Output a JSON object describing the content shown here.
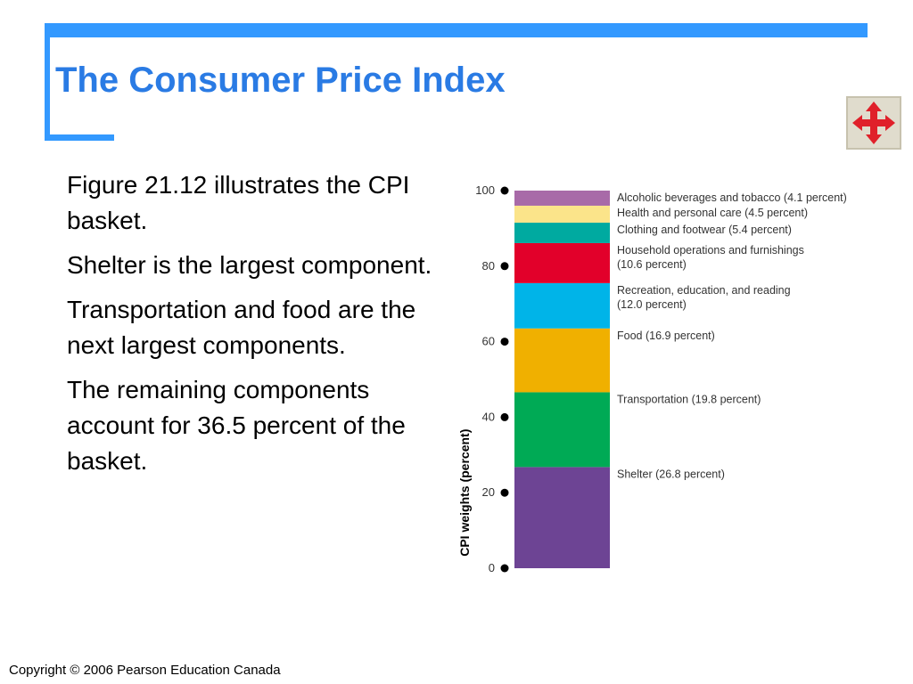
{
  "slide": {
    "title": "The Consumer Price Index",
    "bullets": [
      "Figure 21.12 illustrates the CPI basket.",
      "Shelter is the largest component.",
      "Transportation and food are the next largest components.",
      "The remaining components account for 36.5 percent of the basket."
    ],
    "footer": "Copyright © 2006 Pearson Education Canada",
    "nav_icon": "four-way-arrows-icon"
  },
  "chart_data": {
    "type": "stacked-bar",
    "ylabel": "CPI weights (percent)",
    "ylim": [
      0,
      100
    ],
    "yticks": [
      0,
      20,
      40,
      60,
      80,
      100
    ],
    "segments": [
      {
        "label": [
          "Shelter (26.8 percent)"
        ],
        "value": 26.8,
        "color": "#6d4494"
      },
      {
        "label": [
          "Transportation (19.8 percent)"
        ],
        "value": 19.8,
        "color": "#00aa55"
      },
      {
        "label": [
          "Food (16.9 percent)"
        ],
        "value": 16.9,
        "color": "#f0b000"
      },
      {
        "label": [
          "Recreation, education, and reading",
          "(12.0 percent)"
        ],
        "value": 12.0,
        "color": "#00b4e8"
      },
      {
        "label": [
          "Household operations and furnishings",
          "(10.6 percent)"
        ],
        "value": 10.6,
        "color": "#e2002a"
      },
      {
        "label": [
          "Clothing and footwear (5.4 percent)"
        ],
        "value": 5.4,
        "color": "#00aaa0"
      },
      {
        "label": [
          "Health and personal care (4.5 percent)"
        ],
        "value": 4.5,
        "color": "#fbe48a"
      },
      {
        "label": [
          "Alcoholic beverages and tobacco (4.1 percent)"
        ],
        "value": 4.1,
        "color": "#a86aa8"
      }
    ]
  }
}
